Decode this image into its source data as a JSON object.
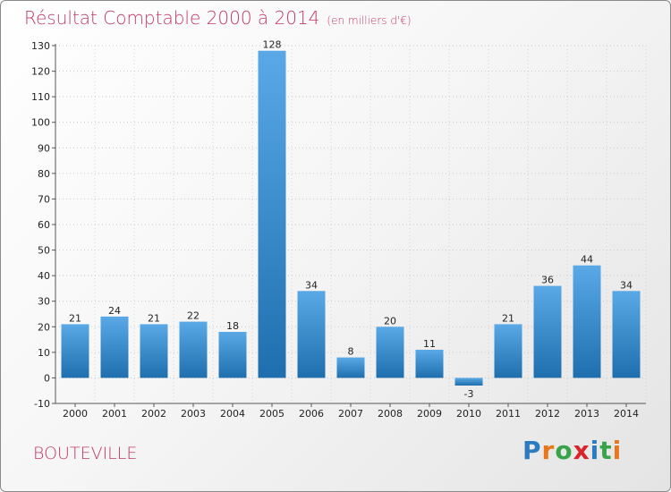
{
  "header": {
    "title": "Résultat Comptable 2000 à 2014",
    "subtitle": "(en milliers d'€)"
  },
  "commune": "BOUTEVILLE",
  "logo": {
    "text": "Proxiti",
    "letters": [
      "P",
      "r",
      "o",
      "x",
      "i",
      "t",
      "i"
    ],
    "colors": [
      "#2a7bc0",
      "#e8761b",
      "#3aa34a",
      "#d9252a",
      "#2a7bc0",
      "#3aa34a",
      "#e8761b"
    ]
  },
  "chart_data": {
    "type": "bar",
    "title": "Résultat Comptable 2000 à 2014 (en milliers d'€)",
    "xlabel": "",
    "ylabel": "",
    "categories": [
      "2000",
      "2001",
      "2002",
      "2003",
      "2004",
      "2005",
      "2006",
      "2007",
      "2008",
      "2009",
      "2010",
      "2011",
      "2012",
      "2013",
      "2014"
    ],
    "values": [
      21,
      24,
      21,
      22,
      18,
      128,
      34,
      8,
      20,
      11,
      -3,
      21,
      36,
      44,
      34
    ],
    "ylim": [
      -10,
      130
    ],
    "yticks": [
      -10,
      0,
      10,
      20,
      30,
      40,
      50,
      60,
      70,
      80,
      90,
      100,
      110,
      120,
      130
    ],
    "grid": "horizontal-dotted",
    "bar_color_top": "#5aa9e6",
    "bar_color_bottom": "#1f6fae"
  }
}
